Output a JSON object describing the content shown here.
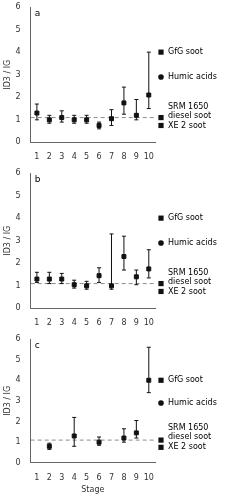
{
  "chart_data": [
    {
      "type": "scatter",
      "panel_label": "a",
      "marker": "square",
      "color": "#111111",
      "grid": false,
      "x": [
        1,
        2,
        3,
        4,
        5,
        6,
        7,
        8,
        9,
        10
      ],
      "values": [
        1.3,
        1.0,
        1.1,
        1.0,
        1.0,
        0.75,
        1.05,
        1.75,
        1.2,
        2.1
      ],
      "error_low": [
        0.3,
        0.15,
        0.2,
        0.15,
        0.15,
        0.15,
        0.3,
        0.5,
        0.2,
        0.6
      ],
      "error_high": [
        0.4,
        0.2,
        0.3,
        0.2,
        0.2,
        0.15,
        0.4,
        0.7,
        0.7,
        1.9
      ],
      "xlim": [
        0.5,
        10.5
      ],
      "xticks": [
        1,
        2,
        3,
        4,
        5,
        6,
        7,
        8,
        9,
        10
      ],
      "ylim": [
        0,
        6
      ],
      "yticks": [
        0,
        1,
        2,
        3,
        4,
        5,
        6
      ],
      "ylabel": "ID3 / IG",
      "reference_line": 1.1,
      "reference_marks": [
        {
          "value": 4.0,
          "label": "GfG soot",
          "marker": "square"
        },
        {
          "value": 2.9,
          "label": "Humic acids",
          "marker": "circle"
        },
        {
          "value": 1.1,
          "label": "SRM 1650\ndiesel soot",
          "marker": "square"
        },
        {
          "value": 0.75,
          "label": "XE 2 soot",
          "marker": "square"
        }
      ]
    },
    {
      "type": "scatter",
      "panel_label": "b",
      "marker": "square",
      "color": "#111111",
      "grid": false,
      "x": [
        1,
        2,
        3,
        4,
        5,
        6,
        7,
        8,
        9,
        10
      ],
      "values": [
        1.3,
        1.3,
        1.3,
        1.05,
        1.0,
        1.45,
        1.0,
        2.3,
        1.4,
        1.75
      ],
      "error_low": [
        0.15,
        0.2,
        0.2,
        0.15,
        0.15,
        0.3,
        0.15,
        0.6,
        0.35,
        0.4
      ],
      "error_high": [
        0.3,
        0.3,
        0.25,
        0.2,
        0.2,
        0.35,
        2.3,
        0.9,
        0.3,
        0.85
      ],
      "xlim": [
        0.5,
        10.5
      ],
      "xticks": [
        1,
        2,
        3,
        4,
        5,
        6,
        7,
        8,
        9,
        10
      ],
      "ylim": [
        0,
        6
      ],
      "yticks": [
        0,
        1,
        2,
        3,
        4,
        5,
        6
      ],
      "ylabel": "ID3 / IG",
      "reference_line": 1.1,
      "reference_marks": [
        {
          "value": 4.0,
          "label": "GfG soot",
          "marker": "square"
        },
        {
          "value": 2.9,
          "label": "Humic acids",
          "marker": "circle"
        },
        {
          "value": 1.1,
          "label": "SRM 1650\ndiesel soot",
          "marker": "square"
        },
        {
          "value": 0.75,
          "label": "XE 2 soot",
          "marker": "square"
        }
      ]
    },
    {
      "type": "scatter",
      "panel_label": "c",
      "marker": "square",
      "color": "#111111",
      "grid": false,
      "x": [
        2,
        4,
        6,
        8,
        9,
        10
      ],
      "values": [
        0.8,
        1.3,
        1.0,
        1.2,
        1.45,
        4.0
      ],
      "error_low": [
        0.15,
        0.5,
        0.15,
        0.2,
        0.25,
        0.6
      ],
      "error_high": [
        0.15,
        0.9,
        0.25,
        0.45,
        0.6,
        1.6
      ],
      "xlim": [
        0.5,
        10.5
      ],
      "xticks": [
        1,
        2,
        3,
        4,
        5,
        6,
        7,
        8,
        9,
        10
      ],
      "ylim": [
        0,
        6
      ],
      "yticks": [
        0,
        1,
        2,
        3,
        4,
        5,
        6
      ],
      "ylabel": "ID3 / IG",
      "xlabel": "Stage",
      "reference_line": 1.1,
      "reference_marks": [
        {
          "value": 4.0,
          "label": "GfG soot",
          "marker": "square"
        },
        {
          "value": 2.9,
          "label": "Humic acids",
          "marker": "circle"
        },
        {
          "value": 1.1,
          "label": "SRM 1650\ndiesel soot",
          "marker": "square"
        },
        {
          "value": 0.75,
          "label": "XE 2 soot",
          "marker": "square"
        }
      ]
    }
  ]
}
